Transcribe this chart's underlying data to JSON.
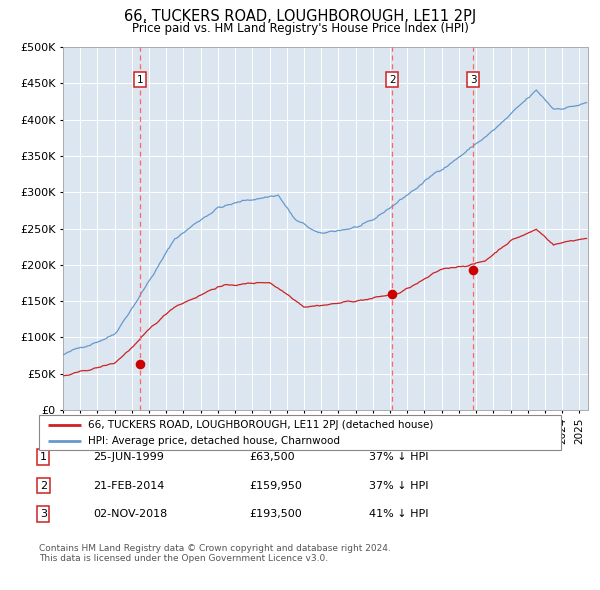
{
  "title": "66, TUCKERS ROAD, LOUGHBOROUGH, LE11 2PJ",
  "subtitle": "Price paid vs. HM Land Registry's House Price Index (HPI)",
  "title_fontsize": 10.5,
  "subtitle_fontsize": 8.5,
  "background_color": "#dce6f1",
  "plot_bg_color": "#dce6f1",
  "hpi_line_color": "#6699cc",
  "price_line_color": "#cc2222",
  "marker_color": "#cc0000",
  "vline_color": "#ff6666",
  "ylim": [
    0,
    500000
  ],
  "yticks": [
    0,
    50000,
    100000,
    150000,
    200000,
    250000,
    300000,
    350000,
    400000,
    450000,
    500000
  ],
  "sales": [
    {
      "label": "1",
      "date": 1999.48,
      "price": 63500
    },
    {
      "label": "2",
      "date": 2014.13,
      "price": 159950
    },
    {
      "label": "3",
      "date": 2018.84,
      "price": 193500
    }
  ],
  "legend_entries": [
    {
      "label": "66, TUCKERS ROAD, LOUGHBOROUGH, LE11 2PJ (detached house)",
      "color": "#cc2222"
    },
    {
      "label": "HPI: Average price, detached house, Charnwood",
      "color": "#6699cc"
    }
  ],
  "table_rows": [
    {
      "num": "1",
      "date": "25-JUN-1999",
      "price": "£63,500",
      "hpi_text": "37% ↓ HPI"
    },
    {
      "num": "2",
      "date": "21-FEB-2014",
      "price": "£159,950",
      "hpi_text": "37% ↓ HPI"
    },
    {
      "num": "3",
      "date": "02-NOV-2018",
      "price": "£193,500",
      "hpi_text": "41% ↓ HPI"
    }
  ],
  "footnote": "Contains HM Land Registry data © Crown copyright and database right 2024.\nThis data is licensed under the Open Government Licence v3.0.",
  "xmin": 1995.0,
  "xmax": 2025.5
}
